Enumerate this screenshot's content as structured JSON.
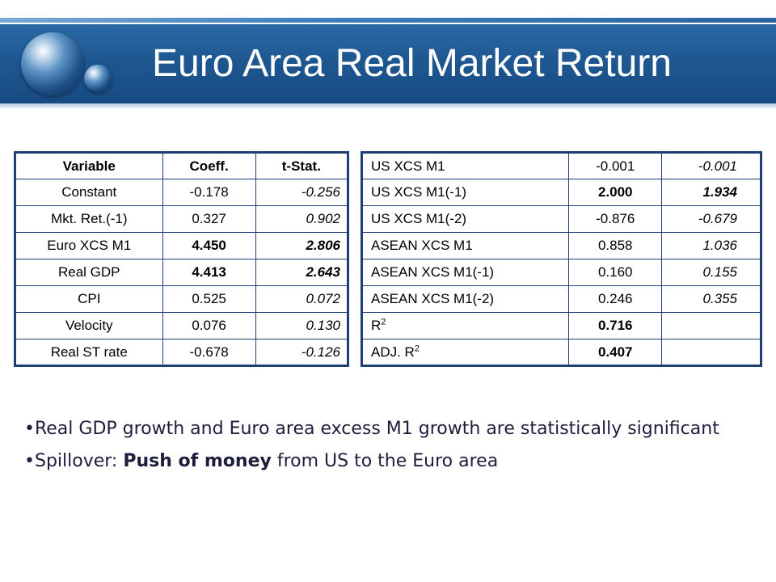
{
  "title": "Euro Area Real Market Return",
  "left_table": {
    "headers": [
      "Variable",
      "Coeff.",
      "t-Stat."
    ],
    "rows": [
      {
        "variable": "Constant",
        "coeff": "-0.178",
        "tstat": "-0.256"
      },
      {
        "variable": "Mkt. Ret.(-1)",
        "coeff": "0.327",
        "tstat": "0.902"
      },
      {
        "variable": "Euro XCS M1",
        "coeff": "4.450",
        "tstat": "2.806"
      },
      {
        "variable": "Real GDP",
        "coeff": "4.413",
        "tstat": "2.643"
      },
      {
        "variable": "CPI",
        "coeff": "0.525",
        "tstat": "0.072"
      },
      {
        "variable": "Velocity",
        "coeff": "0.076",
        "tstat": "0.130"
      },
      {
        "variable": "Real ST rate",
        "coeff": "-0.678",
        "tstat": "-0.126"
      }
    ]
  },
  "right_table": {
    "rows": [
      {
        "variable": "US XCS M1",
        "coeff": "-0.001",
        "tstat": "-0.001"
      },
      {
        "variable": "US XCS M1(-1)",
        "coeff": "2.000",
        "tstat": "1.934"
      },
      {
        "variable": "US XCS M1(-2)",
        "coeff": "-0.876",
        "tstat": "-0.679"
      },
      {
        "variable": "ASEAN XCS M1",
        "coeff": "0.858",
        "tstat": "1.036"
      },
      {
        "variable": "ASEAN XCS M1(-1)",
        "coeff": "0.160",
        "tstat": "0.155"
      },
      {
        "variable": "ASEAN XCS M1(-2)",
        "coeff": "0.246",
        "tstat": "0.355"
      }
    ],
    "r2_label": "R",
    "r2_sup": "2",
    "r2_value": "0.716",
    "adj_r2_label": "ADJ. R",
    "adj_r2_sub": "2",
    "adj_r2_value": "0.407"
  },
  "bullets": {
    "b1": "•Real GDP growth and Euro area excess M1 growth are statistically significant",
    "b2_prefix": "•Spillover: ",
    "b2_bold": "Push of money",
    "b2_suffix": " from US to the Euro area"
  },
  "colors": {
    "banner": "#1e5791",
    "table_border": "#1f3f73",
    "title_text": "#ffffff"
  }
}
